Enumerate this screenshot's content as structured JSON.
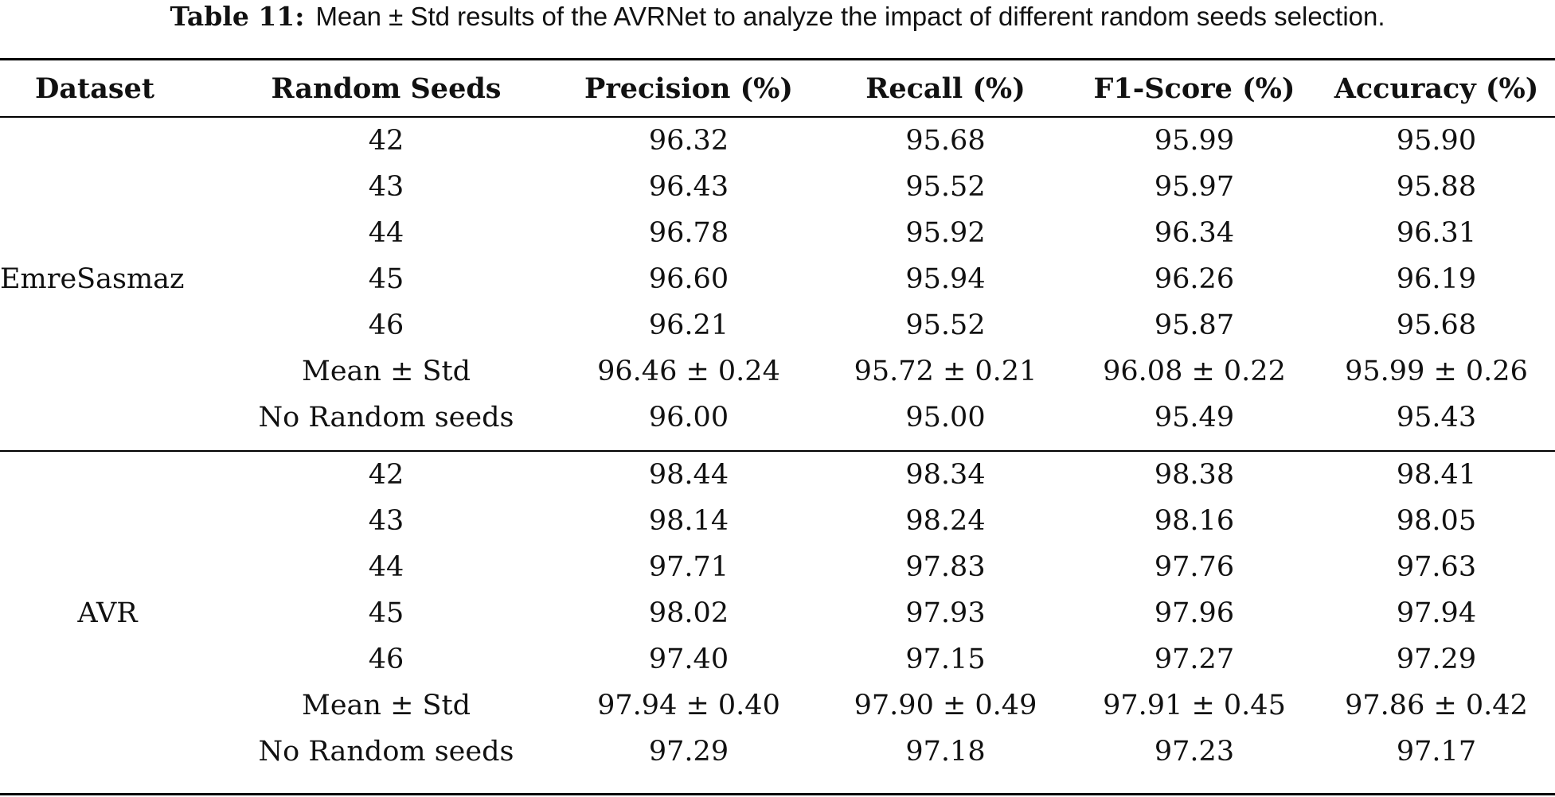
{
  "caption": {
    "label": "Table 11:",
    "text": "Mean ± Std results of the AVRNet to analyze the impact of different random seeds selection."
  },
  "header": {
    "dataset": "Dataset",
    "seeds": "Random Seeds",
    "precision": "Precision (%)",
    "recall": "Recall (%)",
    "f1": "F1-Score (%)",
    "accuracy": "Accuracy (%)"
  },
  "groups": [
    {
      "dataset": "EmreSasmaz",
      "rows": [
        {
          "seed": "42",
          "precision": "96.32",
          "recall": "95.68",
          "f1": "95.99",
          "accuracy": "95.90"
        },
        {
          "seed": "43",
          "precision": "96.43",
          "recall": "95.52",
          "f1": "95.97",
          "accuracy": "95.88"
        },
        {
          "seed": "44",
          "precision": "96.78",
          "recall": "95.92",
          "f1": "96.34",
          "accuracy": "96.31"
        },
        {
          "seed": "45",
          "precision": "96.60",
          "recall": "95.94",
          "f1": "96.26",
          "accuracy": "96.19"
        },
        {
          "seed": "46",
          "precision": "96.21",
          "recall": "95.52",
          "f1": "95.87",
          "accuracy": "95.68"
        },
        {
          "seed": "Mean ± Std",
          "precision": "96.46 ± 0.24",
          "recall": "95.72 ± 0.21",
          "f1": "96.08 ± 0.22",
          "accuracy": "95.99 ± 0.26"
        },
        {
          "seed": "No Random seeds",
          "precision": "96.00",
          "recall": "95.00",
          "f1": "95.49",
          "accuracy": "95.43"
        }
      ]
    },
    {
      "dataset": "AVR",
      "rows": [
        {
          "seed": "42",
          "precision": "98.44",
          "recall": "98.34",
          "f1": "98.38",
          "accuracy": "98.41"
        },
        {
          "seed": "43",
          "precision": "98.14",
          "recall": "98.24",
          "f1": "98.16",
          "accuracy": "98.05"
        },
        {
          "seed": "44",
          "precision": "97.71",
          "recall": "97.83",
          "f1": "97.76",
          "accuracy": "97.63"
        },
        {
          "seed": "45",
          "precision": "98.02",
          "recall": "97.93",
          "f1": "97.96",
          "accuracy": "97.94"
        },
        {
          "seed": "46",
          "precision": "97.40",
          "recall": "97.15",
          "f1": "97.27",
          "accuracy": "97.29"
        },
        {
          "seed": "Mean ± Std",
          "precision": "97.94 ± 0.40",
          "recall": "97.90 ± 0.49",
          "f1": "97.91 ± 0.45",
          "accuracy": "97.86 ± 0.42"
        },
        {
          "seed": "No Random seeds",
          "precision": "97.29",
          "recall": "97.18",
          "f1": "97.23",
          "accuracy": "97.17"
        }
      ]
    }
  ]
}
